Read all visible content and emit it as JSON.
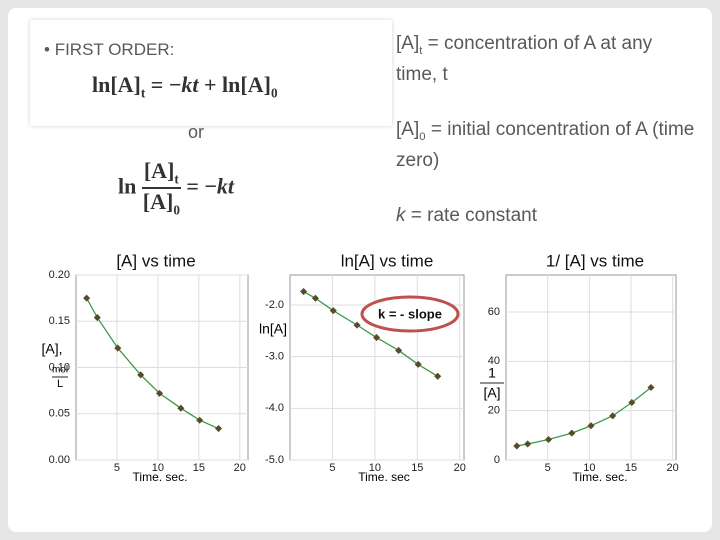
{
  "slide": {
    "bullet": "FIRST ORDER:",
    "equation_1": [
      "ln[A]",
      "t",
      " = −",
      "kt",
      " + ln[A]",
      "0"
    ],
    "or": "or",
    "equation_2": {
      "ln": "ln",
      "numerator": [
        "[A]",
        "t"
      ],
      "denominator": [
        "[A]",
        "0"
      ],
      "rhs": [
        " = −",
        "kt"
      ]
    },
    "definition_1": [
      "[A]",
      "t",
      " = concentration of A at any time, t"
    ],
    "definition_2": [
      "[A]",
      "0",
      " = initial concentration of A (time zero)"
    ],
    "definition_3": [
      "k",
      " = rate constant"
    ]
  },
  "chart_data": [
    {
      "type": "line",
      "title": "[A]  vs time",
      "xlabel": "Time. sec.",
      "ylabel": "[A],",
      "ylabel_numerator": "mol",
      "ylabel_denominator": "L",
      "x": [
        1.3,
        2.6,
        5.1,
        7.9,
        10.2,
        12.8,
        15.1,
        17.4
      ],
      "values": [
        0.175,
        0.154,
        0.121,
        0.092,
        0.072,
        0.056,
        0.043,
        0.034
      ],
      "color": "#3c9a4a",
      "marker_color": "#5a4a2a",
      "xlim": [
        0,
        21
      ],
      "ylim": [
        0,
        0.2
      ],
      "xticks": [
        5,
        10,
        15,
        20
      ],
      "yticks": [
        {
          "value": 0,
          "label": "0.00"
        },
        {
          "value": 0.05,
          "label": "0.05"
        },
        {
          "value": 0.1,
          "label": "0.10"
        },
        {
          "value": 0.15,
          "label": "0.15"
        },
        {
          "value": 0.2,
          "label": "0.20"
        }
      ],
      "grid": true
    },
    {
      "type": "line",
      "title": "ln[A] vs time",
      "xlabel": "Time. sec",
      "ylabel": "ln[A]",
      "annotation": "k = - slope",
      "x": [
        1.6,
        3.0,
        5.1,
        7.9,
        10.2,
        12.8,
        15.1,
        17.4
      ],
      "values": [
        -1.74,
        -1.87,
        -2.11,
        -2.39,
        -2.63,
        -2.88,
        -3.15,
        -3.38
      ],
      "color": "#3c9a4a",
      "marker_color": "#5a4a2a",
      "xlim": [
        0,
        20.5
      ],
      "ylim": [
        -5,
        -1.42
      ],
      "xticks": [
        5,
        10,
        15,
        20
      ],
      "yticks": [
        {
          "value": -5,
          "label": "-5.0"
        },
        {
          "value": -4,
          "label": "-4.0"
        },
        {
          "value": -3,
          "label": "-3.0"
        },
        {
          "value": -2,
          "label": "-2.0"
        }
      ],
      "grid": true
    },
    {
      "type": "line",
      "title": "1/ [A] vs time",
      "xlabel": "Time. sec.",
      "ylabel_numerator": "1",
      "ylabel_denominator": "[A]",
      "x": [
        1.3,
        2.6,
        5.1,
        7.9,
        10.2,
        12.8,
        15.1,
        17.4
      ],
      "values": [
        5.7,
        6.5,
        8.3,
        10.9,
        13.9,
        17.9,
        23.3,
        29.4
      ],
      "color": "#3c9a4a",
      "marker_color": "#5a4a2a",
      "xlim": [
        0,
        20.4
      ],
      "ylim": [
        0,
        75
      ],
      "xticks": [
        5,
        10,
        15,
        20
      ],
      "yticks": [
        0,
        20,
        40,
        60
      ],
      "grid": true
    }
  ]
}
